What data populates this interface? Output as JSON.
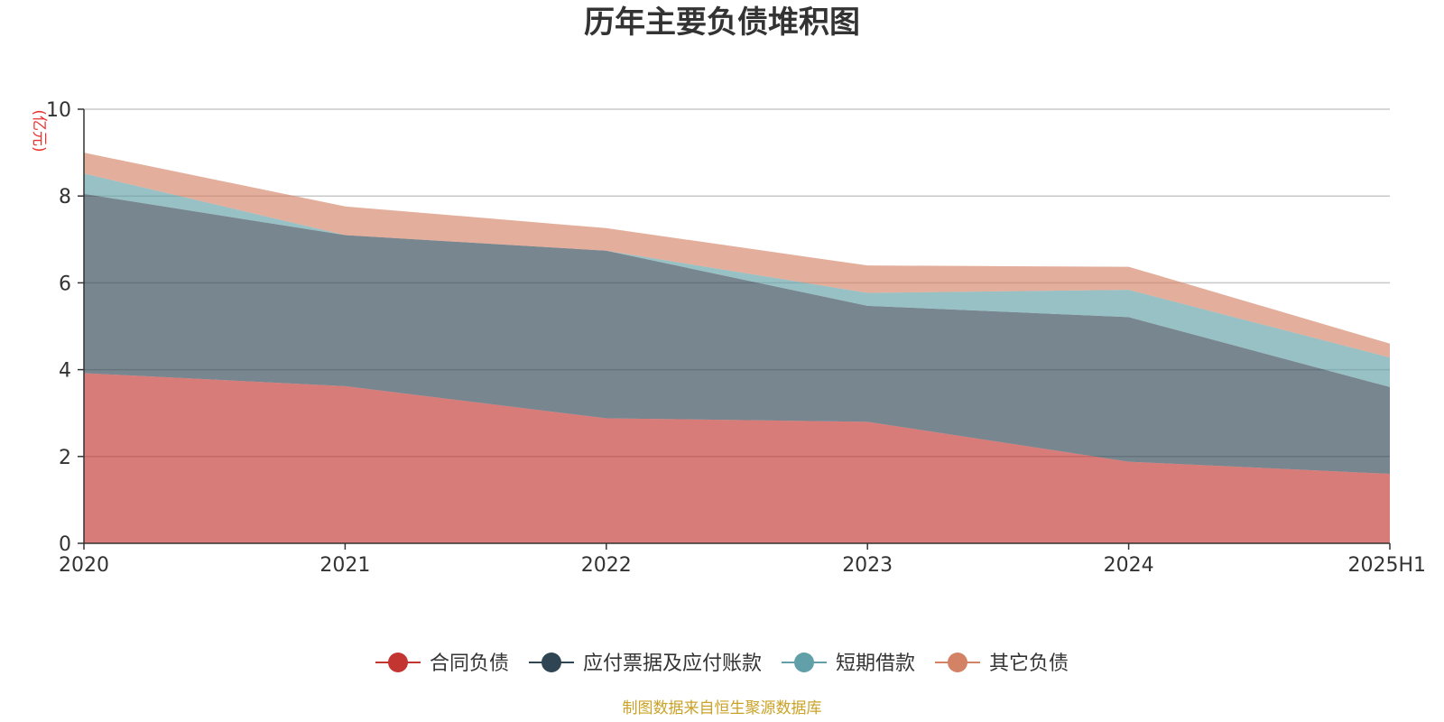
{
  "colors": {
    "contract": "#c23531",
    "payable": "#2f4554",
    "short_loan": "#61a0a8",
    "other": "#d48265",
    "unit": "#e8322f",
    "source": "#c9a227"
  },
  "chart_data": {
    "type": "area",
    "stacked": true,
    "title": "历年主要负债堆积图",
    "unit_label": "(亿元)",
    "categories": [
      "2020",
      "2021",
      "2022",
      "2023",
      "2024",
      "2025H1"
    ],
    "ylim": [
      0,
      10
    ],
    "yticks": [
      0,
      2,
      4,
      6,
      8,
      10
    ],
    "grid": true,
    "legend_position": "bottom",
    "series": [
      {
        "name": "合同负债",
        "color_key": "contract",
        "values": [
          3.92,
          3.62,
          2.88,
          2.8,
          1.88,
          1.6
        ]
      },
      {
        "name": "应付票据及应付账款",
        "color_key": "payable",
        "values": [
          4.13,
          3.48,
          3.86,
          2.67,
          3.33,
          2.0
        ]
      },
      {
        "name": "短期借款",
        "color_key": "short_loan",
        "values": [
          0.47,
          0.0,
          0.0,
          0.3,
          0.63,
          0.68
        ]
      },
      {
        "name": "其它负债",
        "color_key": "other",
        "values": [
          0.48,
          0.66,
          0.52,
          0.63,
          0.53,
          0.32
        ]
      }
    ]
  },
  "footer": {
    "source": "制图数据来自恒生聚源数据库"
  }
}
